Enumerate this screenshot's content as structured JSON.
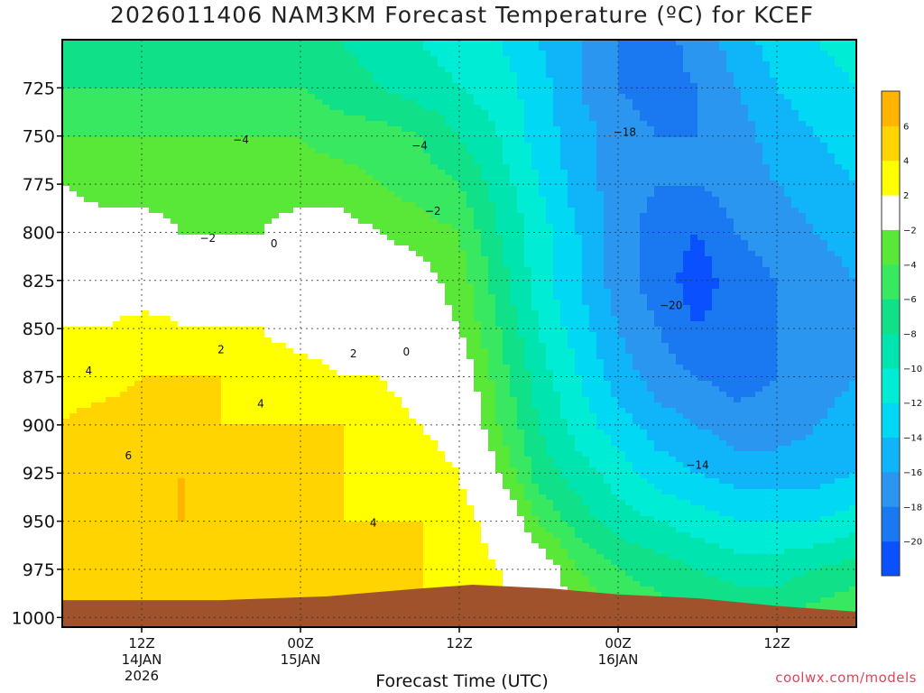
{
  "title": "2026011406 NAM3KM Forecast Temperature (ºC) for KCEF",
  "credit": "coolwx.com/models",
  "chart_data": {
    "type": "heatmap",
    "title": "2026011406 NAM3KM Forecast Temperature (ºC) for KCEF",
    "xlabel": "Forecast Time (UTC)",
    "ylabel": "",
    "xlim": [
      6,
      66
    ],
    "ylim": [
      700,
      1005
    ],
    "y_ticks": [
      725,
      750,
      775,
      800,
      825,
      850,
      875,
      900,
      925,
      950,
      975,
      1000
    ],
    "x_ticks": [
      {
        "x": 12,
        "lines": [
          "12Z",
          "14JAN",
          "2026"
        ]
      },
      {
        "x": 24,
        "lines": [
          "00Z",
          "15JAN"
        ]
      },
      {
        "x": 36,
        "lines": [
          "12Z"
        ]
      },
      {
        "x": 48,
        "lines": [
          "00Z",
          "16JAN"
        ]
      },
      {
        "x": 60,
        "lines": [
          "12Z"
        ]
      }
    ],
    "colorbar": {
      "levels": [
        -22,
        -20,
        -18,
        -16,
        -14,
        -12,
        -10,
        -8,
        -6,
        -4,
        -2,
        2,
        4,
        6,
        8
      ],
      "labels": [
        "-20",
        "-18",
        "-16",
        "-14",
        "-12",
        "-10",
        "-8",
        "-6",
        "-4",
        "-2",
        "2",
        "4",
        "6"
      ],
      "colors": [
        "#0a50ff",
        "#1a78f0",
        "#2a96f0",
        "#10b4f8",
        "#00d8f4",
        "#00ecd4",
        "#00e4b0",
        "#10e088",
        "#38e860",
        "#5ae838",
        "#ffffff",
        "#ffff00",
        "#ffd400",
        "#ffb400"
      ]
    },
    "grid": true,
    "ground_surface": [
      {
        "x": 6,
        "p": 991
      },
      {
        "x": 18,
        "p": 991
      },
      {
        "x": 26,
        "p": 989
      },
      {
        "x": 33,
        "p": 985
      },
      {
        "x": 37,
        "p": 983
      },
      {
        "x": 43,
        "p": 985
      },
      {
        "x": 48,
        "p": 988
      },
      {
        "x": 54,
        "p": 990
      },
      {
        "x": 60,
        "p": 994
      },
      {
        "x": 66,
        "p": 997
      }
    ],
    "temperature_grid": {
      "x": [
        6,
        9,
        12,
        15,
        18,
        21,
        24,
        27,
        30,
        33,
        36,
        39,
        42,
        45,
        48,
        51,
        54,
        57,
        60,
        63,
        66
      ],
      "p": [
        700,
        725,
        750,
        775,
        800,
        825,
        850,
        875,
        900,
        925,
        950,
        975,
        1000
      ],
      "values": [
        [
          -7,
          -7,
          -7,
          -7,
          -7,
          -7,
          -7,
          -8,
          -9,
          -10,
          -11,
          -12,
          -14,
          -16,
          -18,
          -19,
          -17,
          -15,
          -13,
          -12,
          -11
        ],
        [
          -6,
          -6,
          -6,
          -6,
          -6,
          -6,
          -6,
          -7,
          -8,
          -9,
          -10,
          -11,
          -13,
          -16,
          -18,
          -19,
          -18,
          -16,
          -14,
          -13,
          -12
        ],
        [
          -4,
          -4,
          -4,
          -4,
          -4,
          -4,
          -4,
          -5,
          -5,
          -6,
          -8,
          -10,
          -13,
          -15,
          -17,
          -18,
          -18,
          -17,
          -15,
          -14,
          -13
        ],
        [
          -2,
          -3,
          -3,
          -3,
          -3,
          -3,
          -3,
          -3,
          -4,
          -5,
          -6,
          -9,
          -12,
          -15,
          -17,
          -18,
          -18,
          -17,
          -16,
          -15,
          -14
        ],
        [
          0,
          -1,
          -1,
          -2,
          -2,
          -2,
          -1,
          -1,
          -2,
          -3,
          -4,
          -8,
          -11,
          -14,
          -17,
          -19,
          -20,
          -18,
          -17,
          -16,
          -15
        ],
        [
          1,
          0,
          0,
          1,
          0,
          0,
          0,
          0,
          0,
          -1,
          -3,
          -7,
          -11,
          -14,
          -17,
          -19,
          -21,
          -19,
          -18,
          -17,
          -16
        ],
        [
          2,
          2,
          3,
          2,
          2,
          2,
          1,
          1,
          1,
          0,
          -2,
          -6,
          -10,
          -13,
          -16,
          -18,
          -20,
          -19,
          -18,
          -17,
          -16
        ],
        [
          3,
          3,
          4,
          4,
          4,
          3,
          3,
          2,
          2,
          1,
          0,
          -5,
          -9,
          -12,
          -15,
          -17,
          -18,
          -19,
          -18,
          -17,
          -16
        ],
        [
          4,
          5,
          5,
          5,
          4,
          4,
          4,
          4,
          3,
          2,
          1,
          -4,
          -8,
          -11,
          -13,
          -15,
          -16,
          -17,
          -17,
          -16,
          -15
        ],
        [
          5,
          5,
          6,
          6,
          6,
          5,
          4,
          4,
          3,
          3,
          2,
          -2,
          -7,
          -9,
          -11,
          -13,
          -14,
          -15,
          -15,
          -15,
          -14
        ],
        [
          5,
          5,
          5,
          6,
          5,
          5,
          4,
          4,
          4,
          4,
          3,
          1,
          -4,
          -7,
          -9,
          -10,
          -11,
          -12,
          -12,
          -12,
          -11
        ],
        [
          4,
          4,
          4,
          5,
          5,
          5,
          4,
          4,
          4,
          4,
          3,
          2,
          0,
          -4,
          -6,
          -7,
          -8,
          -9,
          -9,
          -8,
          -7
        ],
        [
          4,
          4,
          4,
          5,
          6,
          6,
          5,
          5,
          4,
          4,
          3,
          3,
          1,
          -2,
          -4,
          -5,
          -6,
          -6,
          -6,
          -5,
          -4
        ]
      ]
    },
    "contour_labels": [
      {
        "text": "-4",
        "x": 19.5,
        "p": 752
      },
      {
        "text": "-4",
        "x": 33,
        "p": 755
      },
      {
        "text": "-2",
        "x": 34,
        "p": 789
      },
      {
        "text": "-2",
        "x": 17,
        "p": 803
      },
      {
        "text": "0",
        "x": 22,
        "p": 806
      },
      {
        "text": "2",
        "x": 18,
        "p": 861
      },
      {
        "text": "2",
        "x": 28,
        "p": 863
      },
      {
        "text": "0",
        "x": 32,
        "p": 862
      },
      {
        "text": "4",
        "x": 8,
        "p": 872
      },
      {
        "text": "4",
        "x": 21,
        "p": 889
      },
      {
        "text": "6",
        "x": 11,
        "p": 916
      },
      {
        "text": "4",
        "x": 29.5,
        "p": 951
      },
      {
        "text": "-18",
        "x": 48.5,
        "p": 748
      },
      {
        "text": "-20",
        "x": 52,
        "p": 838
      },
      {
        "text": "-14",
        "x": 54,
        "p": 921
      }
    ]
  }
}
